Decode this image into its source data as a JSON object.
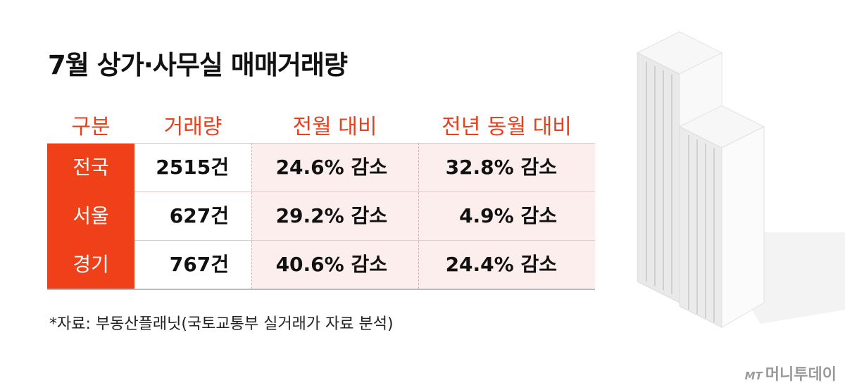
{
  "header": {
    "title": "7월 상가·사무실 매매거래량"
  },
  "table": {
    "columns": [
      "구분",
      "거래량",
      "전월 대비",
      "전년 동월 대비"
    ],
    "rows": [
      [
        "전국",
        "2515건",
        "24.6% 감소",
        "32.8% 감소"
      ],
      [
        "서울",
        "627건",
        "29.2% 감소",
        "4.9% 감소"
      ],
      [
        "경기",
        "767건",
        "40.6% 감소",
        "24.4% 감소"
      ]
    ]
  },
  "note": "*자료: 부동산플래닛(국토교통부 실거래가 자료 분석)",
  "logo": {
    "mark": "MT",
    "name": "머니투데이"
  }
}
